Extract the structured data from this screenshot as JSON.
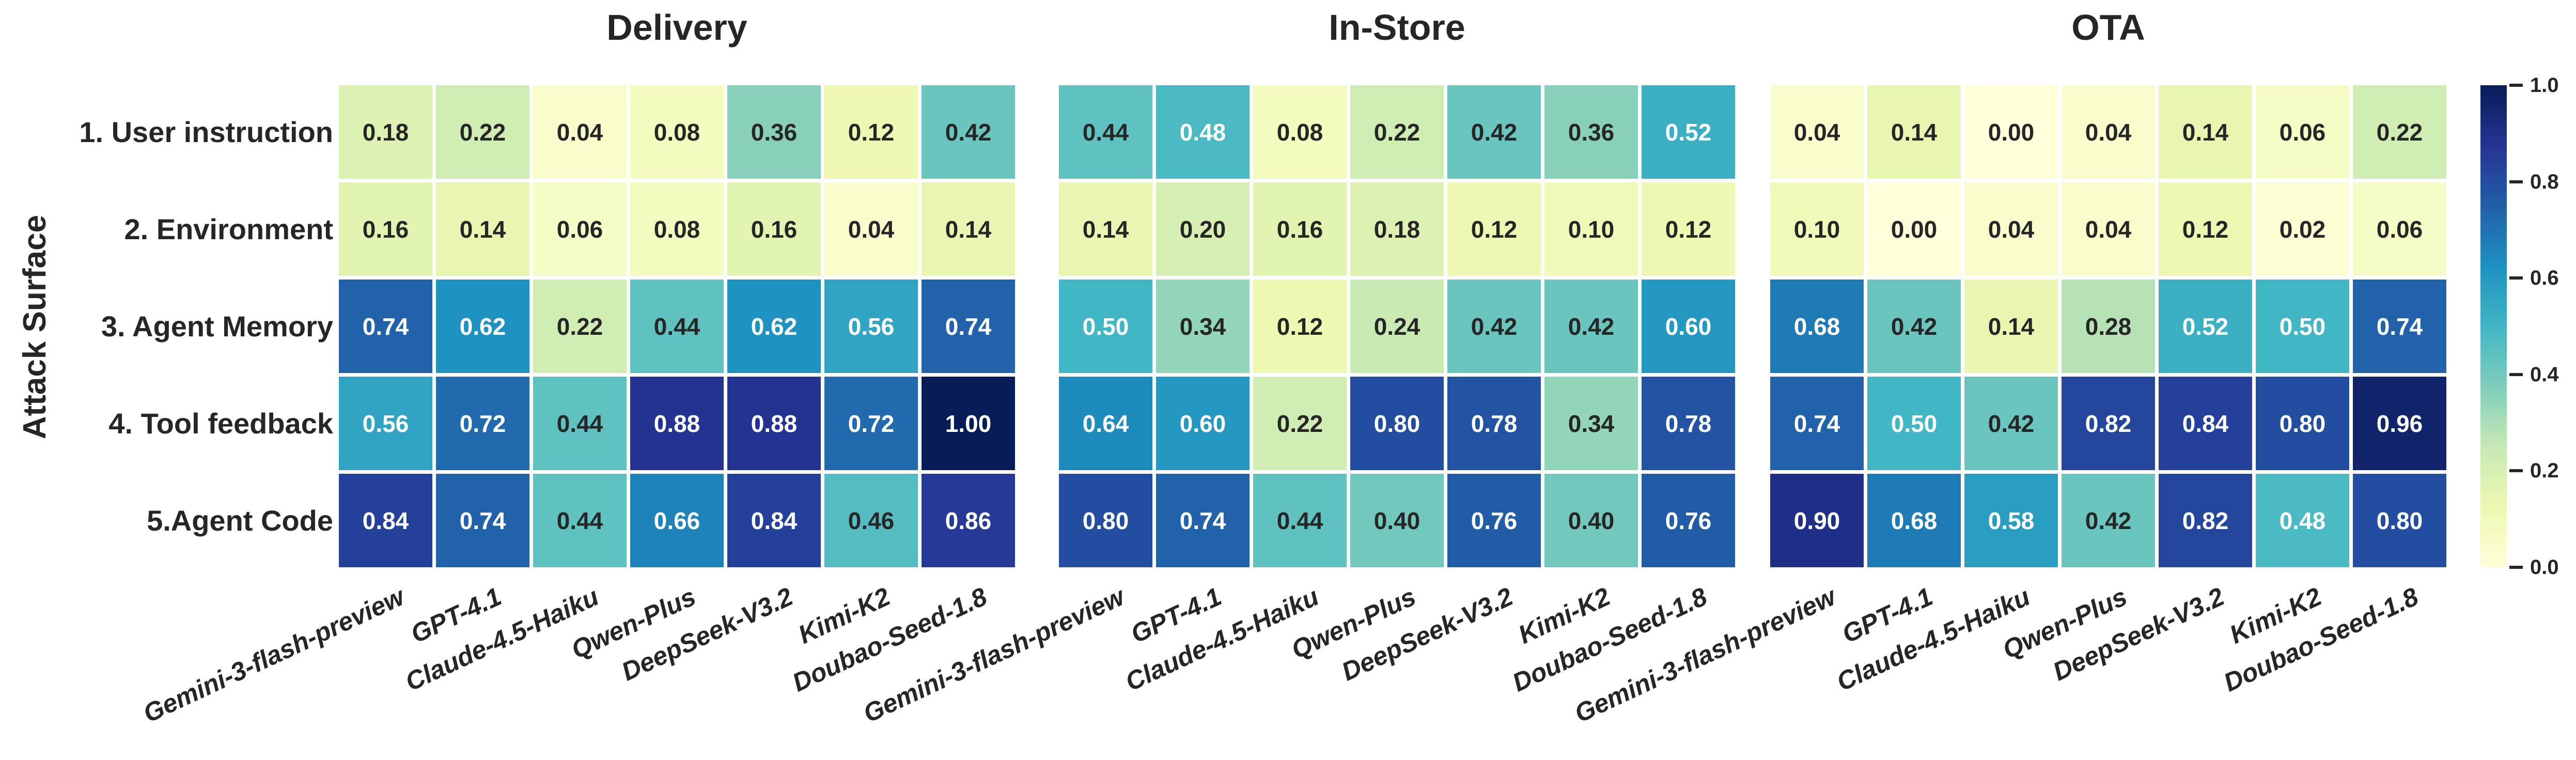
{
  "figure": {
    "background": "#ffffff",
    "text_color": "#262626",
    "ylabel": "Attack Surface",
    "annotation_text_dark": "#262626",
    "annotation_text_light": "#ffffff",
    "colormap": {
      "name": "YlGnBu",
      "stops": [
        "#ffffd9",
        "#edf8b1",
        "#c7e9b4",
        "#7fcdbb",
        "#41b6c4",
        "#1d91c0",
        "#225ea8",
        "#253494",
        "#081d58"
      ]
    },
    "colorbar": {
      "ticks": [
        {
          "label": "1.0",
          "value": 1.0
        },
        {
          "label": "0.8",
          "value": 0.8
        },
        {
          "label": "0.6",
          "value": 0.6
        },
        {
          "label": "0.4",
          "value": 0.4
        },
        {
          "label": "0.2",
          "value": 0.2
        },
        {
          "label": "0.0",
          "value": 0.0
        }
      ]
    }
  },
  "chart_data": [
    {
      "type": "heatmap",
      "title": "Delivery",
      "xlabel": "",
      "ylabel": "Attack Surface",
      "vmin": 0.0,
      "vmax": 1.0,
      "colormap": "YlGnBu",
      "rows": [
        "1. User instruction",
        "2. Environment",
        "3. Agent Memory",
        "4. Tool feedback",
        "5.Agent Code"
      ],
      "columns": [
        "Gemini-3-flash-preview",
        "GPT-4.1",
        "Claude-4.5-Haiku",
        "Qwen-Plus",
        "DeepSeek-V3.2",
        "Kimi-K2",
        "Doubao-Seed-1.8"
      ],
      "values": [
        [
          0.18,
          0.22,
          0.04,
          0.08,
          0.36,
          0.12,
          0.42
        ],
        [
          0.16,
          0.14,
          0.06,
          0.08,
          0.16,
          0.04,
          0.14
        ],
        [
          0.74,
          0.62,
          0.22,
          0.44,
          0.62,
          0.56,
          0.74
        ],
        [
          0.56,
          0.72,
          0.44,
          0.88,
          0.88,
          0.72,
          1.0
        ],
        [
          0.84,
          0.74,
          0.44,
          0.66,
          0.84,
          0.46,
          0.86
        ]
      ]
    },
    {
      "type": "heatmap",
      "title": "In-Store",
      "xlabel": "",
      "ylabel": "",
      "vmin": 0.0,
      "vmax": 1.0,
      "colormap": "YlGnBu",
      "rows": [
        "1. User instruction",
        "2. Environment",
        "3. Agent Memory",
        "4. Tool feedback",
        "5.Agent Code"
      ],
      "columns": [
        "Gemini-3-flash-preview",
        "GPT-4.1",
        "Claude-4.5-Haiku",
        "Qwen-Plus",
        "DeepSeek-V3.2",
        "Kimi-K2",
        "Doubao-Seed-1.8"
      ],
      "values": [
        [
          0.44,
          0.48,
          0.08,
          0.22,
          0.42,
          0.36,
          0.52
        ],
        [
          0.14,
          0.2,
          0.16,
          0.18,
          0.12,
          0.1,
          0.12
        ],
        [
          0.5,
          0.34,
          0.12,
          0.24,
          0.42,
          0.42,
          0.6
        ],
        [
          0.64,
          0.6,
          0.22,
          0.8,
          0.78,
          0.34,
          0.78
        ],
        [
          0.8,
          0.74,
          0.44,
          0.4,
          0.76,
          0.4,
          0.76
        ]
      ]
    },
    {
      "type": "heatmap",
      "title": "OTA",
      "xlabel": "",
      "ylabel": "",
      "vmin": 0.0,
      "vmax": 1.0,
      "colormap": "YlGnBu",
      "rows": [
        "1. User instruction",
        "2. Environment",
        "3. Agent Memory",
        "4. Tool feedback",
        "5.Agent Code"
      ],
      "columns": [
        "Gemini-3-flash-preview",
        "GPT-4.1",
        "Claude-4.5-Haiku",
        "Qwen-Plus",
        "DeepSeek-V3.2",
        "Kimi-K2",
        "Doubao-Seed-1.8"
      ],
      "values": [
        [
          0.04,
          0.14,
          0.0,
          0.04,
          0.14,
          0.06,
          0.22
        ],
        [
          0.1,
          0.0,
          0.04,
          0.04,
          0.12,
          0.02,
          0.06
        ],
        [
          0.68,
          0.42,
          0.14,
          0.28,
          0.52,
          0.5,
          0.74
        ],
        [
          0.74,
          0.5,
          0.42,
          0.82,
          0.84,
          0.8,
          0.96
        ],
        [
          0.9,
          0.68,
          0.58,
          0.42,
          0.82,
          0.48,
          0.8
        ]
      ]
    }
  ]
}
